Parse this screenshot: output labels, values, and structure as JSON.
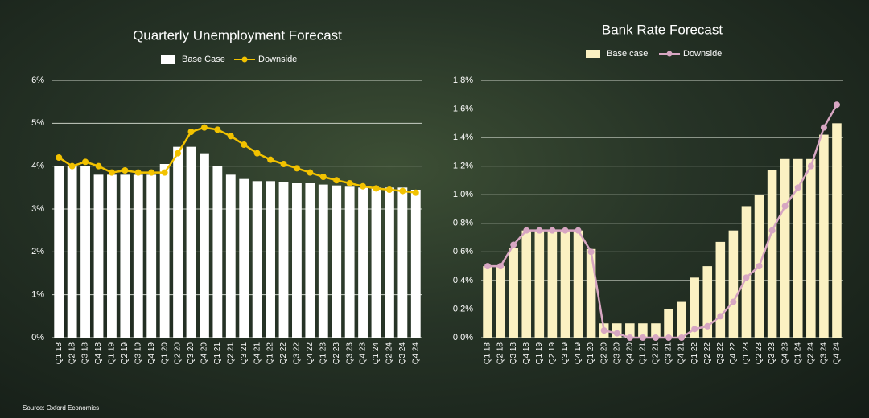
{
  "chart_data": [
    {
      "type": "bar",
      "title": "Quarterly Unemployment Forecast",
      "categories": [
        "Q1 18",
        "Q2 18",
        "Q3 18",
        "Q4 18",
        "Q1 19",
        "Q2 19",
        "Q3 19",
        "Q4 19",
        "Q1 20",
        "Q2 20",
        "Q3 20",
        "Q4 20",
        "Q1 21",
        "Q2 21",
        "Q3 21",
        "Q4 21",
        "Q1 22",
        "Q2 22",
        "Q3 22",
        "Q4 22",
        "Q1 23",
        "Q2 23",
        "Q3 23",
        "Q4 23",
        "Q1 24",
        "Q2 24",
        "Q3 24",
        "Q4 24"
      ],
      "series": [
        {
          "name": "Base Case",
          "type": "bar",
          "color": "#ffffff",
          "values": [
            4.0,
            4.0,
            4.0,
            3.8,
            3.8,
            3.8,
            3.8,
            3.8,
            4.05,
            4.45,
            4.45,
            4.3,
            4.0,
            3.8,
            3.7,
            3.65,
            3.65,
            3.62,
            3.6,
            3.6,
            3.57,
            3.55,
            3.52,
            3.5,
            3.5,
            3.5,
            3.5,
            3.45
          ]
        },
        {
          "name": "Downside",
          "type": "line",
          "color": "#f2c200",
          "values": [
            4.2,
            4.0,
            4.1,
            4.0,
            3.85,
            3.9,
            3.85,
            3.85,
            3.85,
            4.3,
            4.8,
            4.9,
            4.85,
            4.7,
            4.5,
            4.3,
            4.15,
            4.05,
            3.95,
            3.85,
            3.75,
            3.67,
            3.6,
            3.53,
            3.48,
            3.45,
            3.42,
            3.38
          ]
        }
      ],
      "ylim": [
        0,
        6
      ],
      "yticks": [
        {
          "value": 0,
          "label": "0%"
        },
        {
          "value": 1,
          "label": "1%"
        },
        {
          "value": 2,
          "label": "2%"
        },
        {
          "value": 3,
          "label": "3%"
        },
        {
          "value": 4,
          "label": "4%"
        },
        {
          "value": 5,
          "label": "5%"
        },
        {
          "value": 6,
          "label": "6%"
        }
      ],
      "grid": true,
      "legend": "top"
    },
    {
      "type": "bar",
      "title": "Bank Rate Forecast",
      "categories": [
        "Q1 18",
        "Q2 18",
        "Q3 18",
        "Q4 18",
        "Q1 19",
        "Q2 19",
        "Q3 19",
        "Q4 19",
        "Q1 20",
        "Q2 20",
        "Q3 20",
        "Q4 20",
        "Q1 21",
        "Q2 21",
        "Q3 21",
        "Q4 21",
        "Q1 22",
        "Q2 22",
        "Q3 22",
        "Q4 22",
        "Q1 23",
        "Q2 23",
        "Q3 23",
        "Q4 23",
        "Q1 24",
        "Q2 24",
        "Q3 24",
        "Q4 24"
      ],
      "series": [
        {
          "name": "Base case",
          "type": "bar",
          "color": "#fbf1c2",
          "values": [
            0.5,
            0.5,
            0.63,
            0.75,
            0.75,
            0.75,
            0.75,
            0.75,
            0.62,
            0.1,
            0.1,
            0.1,
            0.1,
            0.1,
            0.2,
            0.25,
            0.42,
            0.5,
            0.67,
            0.75,
            0.92,
            1.0,
            1.17,
            1.25,
            1.25,
            1.25,
            1.42,
            1.5
          ]
        },
        {
          "name": "Downside",
          "type": "line",
          "color": "#d7a6c2",
          "values": [
            0.5,
            0.5,
            0.65,
            0.75,
            0.75,
            0.75,
            0.75,
            0.75,
            0.6,
            0.05,
            0.03,
            0.0,
            0.0,
            0.0,
            0.0,
            0.0,
            0.06,
            0.08,
            0.15,
            0.25,
            0.42,
            0.5,
            0.75,
            0.92,
            1.05,
            1.2,
            1.47,
            1.63
          ]
        }
      ],
      "ylim": [
        0,
        1.8
      ],
      "yticks": [
        {
          "value": 0,
          "label": "0.0%"
        },
        {
          "value": 0.2,
          "label": "0.2%"
        },
        {
          "value": 0.4,
          "label": "0.4%"
        },
        {
          "value": 0.6,
          "label": "0.6%"
        },
        {
          "value": 0.8,
          "label": "0.8%"
        },
        {
          "value": 1.0,
          "label": "1.0%"
        },
        {
          "value": 1.2,
          "label": "1.2%"
        },
        {
          "value": 1.4,
          "label": "1.4%"
        },
        {
          "value": 1.6,
          "label": "1.6%"
        },
        {
          "value": 1.8,
          "label": "1.8%"
        }
      ],
      "grid": true,
      "legend": "top"
    }
  ],
  "source": "Source: Oxford Economics"
}
